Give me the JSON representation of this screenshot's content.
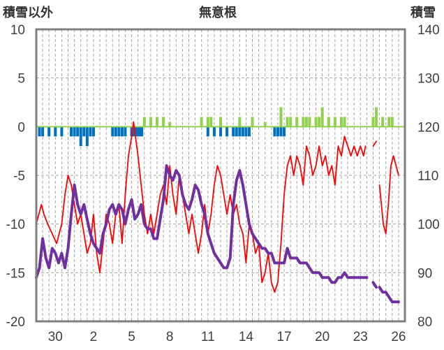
{
  "labels": {
    "left_header": "積雪以外",
    "title": "無意根",
    "right_header": "積雪"
  },
  "colors": {
    "red_series": "#ff0000",
    "purple_series": "#7030a0",
    "blue_bars": "#0070c0",
    "green_bars": "#92d050",
    "frame": "#808080",
    "grid": "#a6a6a6"
  },
  "chart_data": {
    "type": "line",
    "left_axis": {
      "min": -20,
      "max": 10,
      "ticks": [
        "10",
        "5",
        "0",
        "-5",
        "-10",
        "-15",
        "-20"
      ]
    },
    "right_axis": {
      "min": 80,
      "max": 140,
      "ticks": [
        "140",
        "130",
        "120",
        "110",
        "100",
        "90",
        "80"
      ]
    },
    "x_ticks": [
      "30",
      "2",
      "5",
      "8",
      "11",
      "14",
      "17",
      "20",
      "23",
      "26"
    ],
    "series": [
      {
        "axis": "left",
        "style": "line",
        "points": [
          [
            0,
            -10
          ],
          [
            0.8,
            -8
          ],
          [
            1.2,
            -9
          ],
          [
            1.8,
            -10
          ],
          [
            2.5,
            -11
          ],
          [
            3.2,
            -12
          ],
          [
            4,
            -10
          ],
          [
            4.5,
            -7
          ],
          [
            5,
            -5
          ],
          [
            5.5,
            -6
          ],
          [
            6,
            -8
          ],
          [
            6.5,
            -10
          ],
          [
            7,
            -9
          ],
          [
            7.5,
            -11
          ],
          [
            8,
            -13
          ],
          [
            8.5,
            -12
          ],
          [
            9,
            -9
          ],
          [
            9.5,
            -13
          ],
          [
            10,
            -15
          ],
          [
            10.5,
            -12
          ],
          [
            11,
            -9
          ],
          [
            11.5,
            -10
          ],
          [
            12,
            -12
          ],
          [
            12.5,
            -9
          ],
          [
            13,
            -8
          ],
          [
            13.5,
            -12
          ],
          [
            14,
            -7
          ],
          [
            14.5,
            -3
          ],
          [
            15,
            -1
          ],
          [
            15.3,
            0.5
          ],
          [
            15.6,
            -1
          ],
          [
            16,
            -3
          ],
          [
            16.5,
            -6
          ],
          [
            17,
            -9
          ],
          [
            17.5,
            -11
          ],
          [
            18,
            -9
          ],
          [
            18.5,
            -11
          ],
          [
            19,
            -9
          ],
          [
            19.5,
            -7
          ],
          [
            20,
            -6
          ],
          [
            20.5,
            -8
          ],
          [
            21,
            -4
          ],
          [
            21.5,
            -7
          ],
          [
            22,
            -9
          ],
          [
            22.5,
            -5
          ],
          [
            23,
            -7
          ],
          [
            23.5,
            -9
          ],
          [
            24,
            -11
          ],
          [
            24.5,
            -9
          ],
          [
            25,
            -11
          ],
          [
            25.5,
            -13
          ],
          [
            26,
            -11
          ],
          [
            26.5,
            -8
          ],
          [
            27,
            -11
          ],
          [
            27.5,
            -9
          ],
          [
            28,
            -6
          ],
          [
            28.5,
            -4
          ],
          [
            29,
            -5
          ],
          [
            29.5,
            -7
          ],
          [
            30,
            -9
          ],
          [
            30.5,
            -7
          ],
          [
            31,
            -9
          ],
          [
            31.5,
            -8
          ],
          [
            32,
            -10
          ],
          [
            32.5,
            -11
          ],
          [
            33,
            -14
          ],
          [
            33.5,
            -10
          ],
          [
            34,
            -11
          ],
          [
            34.5,
            -13
          ],
          [
            35,
            -12
          ],
          [
            35.5,
            -16
          ],
          [
            36,
            -15
          ],
          [
            36.5,
            -13
          ],
          [
            37,
            -16
          ],
          [
            37.5,
            -17
          ],
          [
            38,
            -16
          ],
          [
            38.5,
            -12
          ],
          [
            39,
            -7
          ],
          [
            39.5,
            -4
          ],
          [
            40,
            -3
          ],
          [
            40.5,
            -5
          ],
          [
            41,
            -3
          ],
          [
            41.5,
            -4
          ],
          [
            42,
            -6
          ],
          [
            42.5,
            -2
          ],
          [
            43,
            -3
          ],
          [
            43.5,
            -5
          ],
          [
            44,
            -4
          ],
          [
            44.5,
            -2
          ],
          [
            45,
            -4
          ],
          [
            45.5,
            -3
          ],
          [
            46,
            -5
          ],
          [
            46.5,
            -4
          ],
          [
            47,
            -6
          ],
          [
            47.5,
            -2
          ],
          [
            48,
            -3
          ],
          [
            48.5,
            -1
          ],
          [
            49,
            -2
          ],
          [
            49.5,
            -3
          ],
          [
            50,
            -2
          ],
          [
            50.5,
            -3
          ],
          [
            51,
            -2
          ],
          [
            51.5,
            -3
          ],
          [
            51.8,
            -2
          ]
        ]
      },
      {
        "axis": "left",
        "style": "line",
        "points": [
          [
            53,
            -2
          ],
          [
            53.5,
            -1.5
          ]
        ]
      },
      {
        "axis": "left",
        "style": "line",
        "points": [
          [
            54,
            -6
          ],
          [
            54.6,
            -10
          ],
          [
            55,
            -11
          ],
          [
            55.4,
            -8
          ],
          [
            55.8,
            -4
          ],
          [
            56.2,
            -3
          ],
          [
            56.6,
            -4
          ],
          [
            57,
            -5
          ]
        ]
      },
      {
        "axis": "right",
        "style": "line",
        "points": [
          [
            0,
            89
          ],
          [
            0.5,
            91
          ],
          [
            1,
            97
          ],
          [
            1.5,
            93
          ],
          [
            2,
            91
          ],
          [
            2.5,
            95
          ],
          [
            3,
            94
          ],
          [
            3.5,
            92
          ],
          [
            4,
            94
          ],
          [
            4.5,
            91
          ],
          [
            5,
            95
          ],
          [
            5.5,
            102
          ],
          [
            6,
            108
          ],
          [
            6.5,
            104
          ],
          [
            7,
            102
          ],
          [
            7.5,
            104
          ],
          [
            8,
            101
          ],
          [
            8.5,
            98
          ],
          [
            9,
            96
          ],
          [
            9.5,
            95
          ],
          [
            10,
            94
          ],
          [
            10.5,
            98
          ],
          [
            11,
            100
          ],
          [
            11.5,
            103
          ],
          [
            12,
            104
          ],
          [
            12.5,
            102
          ],
          [
            13,
            104
          ],
          [
            13.5,
            103
          ],
          [
            14,
            100
          ],
          [
            14.5,
            103
          ],
          [
            15,
            105
          ],
          [
            15.5,
            101
          ],
          [
            16,
            102
          ],
          [
            16.5,
            104
          ],
          [
            17,
            100
          ],
          [
            17.5,
            99
          ],
          [
            18,
            99
          ],
          [
            18.5,
            97
          ],
          [
            19,
            97
          ],
          [
            19.5,
            101
          ],
          [
            20,
            105
          ],
          [
            20.5,
            112
          ],
          [
            21,
            110
          ],
          [
            21.5,
            109
          ],
          [
            22,
            111
          ],
          [
            22.5,
            110
          ],
          [
            23,
            106
          ],
          [
            23.5,
            104
          ],
          [
            24,
            103
          ],
          [
            24.5,
            105
          ],
          [
            25,
            108
          ],
          [
            25.5,
            107
          ],
          [
            26,
            104
          ],
          [
            26.5,
            102
          ],
          [
            27,
            98
          ],
          [
            27.5,
            96
          ],
          [
            28,
            94
          ],
          [
            28.5,
            93
          ],
          [
            29,
            92
          ],
          [
            29.5,
            91
          ],
          [
            30,
            91
          ],
          [
            30.5,
            93
          ],
          [
            31,
            104
          ],
          [
            31.5,
            109
          ],
          [
            32,
            111
          ],
          [
            32.5,
            108
          ],
          [
            33,
            104
          ],
          [
            33.5,
            100
          ],
          [
            34,
            98
          ],
          [
            34.5,
            97
          ],
          [
            35,
            96
          ],
          [
            35.5,
            95
          ],
          [
            36,
            95
          ],
          [
            36.5,
            94
          ],
          [
            37,
            94
          ],
          [
            37.5,
            92
          ],
          [
            38,
            92
          ],
          [
            38.5,
            92
          ],
          [
            39,
            92
          ],
          [
            39.5,
            95
          ],
          [
            40,
            93
          ],
          [
            40.5,
            93
          ],
          [
            41,
            93
          ],
          [
            41.5,
            92
          ],
          [
            42,
            92
          ],
          [
            42.5,
            92
          ],
          [
            43,
            91
          ],
          [
            43.5,
            90
          ],
          [
            44,
            90
          ],
          [
            44.5,
            90
          ],
          [
            45,
            89
          ],
          [
            45.5,
            89
          ],
          [
            46,
            89
          ],
          [
            46.5,
            88
          ],
          [
            47,
            88
          ],
          [
            47.5,
            89
          ],
          [
            48,
            89
          ],
          [
            48.5,
            90
          ],
          [
            49,
            89
          ],
          [
            49.5,
            89
          ],
          [
            50,
            89
          ],
          [
            50.5,
            89
          ],
          [
            51,
            89
          ],
          [
            51.5,
            89
          ],
          [
            52,
            89
          ]
        ]
      },
      {
        "axis": "right",
        "style": "line",
        "points": [
          [
            53,
            88
          ],
          [
            53.5,
            87
          ]
        ]
      },
      {
        "axis": "right",
        "style": "line",
        "points": [
          [
            54,
            87
          ],
          [
            54.5,
            86
          ],
          [
            55,
            86
          ],
          [
            55.5,
            85
          ],
          [
            56,
            84
          ],
          [
            56.5,
            84
          ],
          [
            57,
            84
          ]
        ]
      },
      {
        "axis": "left",
        "style": "bars",
        "color": "blue",
        "points": [
          [
            0.5,
            -1
          ],
          [
            1,
            -1
          ],
          [
            2,
            -1
          ],
          [
            3,
            -1
          ],
          [
            4,
            -1
          ],
          [
            5.5,
            -1
          ],
          [
            6,
            -1
          ],
          [
            6.5,
            -1
          ],
          [
            7,
            -2
          ],
          [
            7.5,
            -1
          ],
          [
            8,
            -2
          ],
          [
            8.5,
            -1
          ],
          [
            9,
            -1
          ],
          [
            12,
            -1
          ],
          [
            12.5,
            -1
          ],
          [
            13,
            -1
          ],
          [
            13.5,
            -1
          ],
          [
            14,
            -1
          ],
          [
            15,
            -1
          ],
          [
            15.4,
            -1
          ],
          [
            15.8,
            -1
          ],
          [
            16.2,
            -1
          ],
          [
            16.6,
            -1
          ],
          [
            27,
            -1
          ],
          [
            28,
            -1
          ],
          [
            29,
            -1
          ],
          [
            30,
            -1
          ],
          [
            31,
            -1
          ],
          [
            31.5,
            -1
          ],
          [
            32,
            -1
          ],
          [
            32.5,
            -1
          ],
          [
            33,
            -1
          ],
          [
            33.5,
            -1
          ],
          [
            37.5,
            -1
          ],
          [
            38,
            -1
          ],
          [
            38.5,
            -1
          ],
          [
            39,
            -1
          ]
        ]
      },
      {
        "axis": "left",
        "style": "bars",
        "color": "green",
        "points": [
          [
            17,
            1
          ],
          [
            18,
            1
          ],
          [
            19,
            1
          ],
          [
            20,
            1
          ],
          [
            21,
            0.5
          ],
          [
            26,
            1
          ],
          [
            27,
            1
          ],
          [
            27.5,
            1
          ],
          [
            29,
            1
          ],
          [
            32,
            1
          ],
          [
            34,
            1
          ],
          [
            36,
            0.5
          ],
          [
            38.5,
            2
          ],
          [
            39.5,
            1
          ],
          [
            40,
            1
          ],
          [
            41,
            1
          ],
          [
            42,
            1
          ],
          [
            42.5,
            1
          ],
          [
            43,
            1
          ],
          [
            44,
            1
          ],
          [
            44.5,
            1
          ],
          [
            45,
            2
          ],
          [
            46,
            1
          ],
          [
            47,
            1
          ],
          [
            48,
            1
          ],
          [
            48.5,
            1
          ],
          [
            53,
            1
          ],
          [
            53.5,
            2
          ],
          [
            54.5,
            1
          ],
          [
            55.5,
            1
          ],
          [
            56,
            1
          ]
        ]
      }
    ]
  }
}
